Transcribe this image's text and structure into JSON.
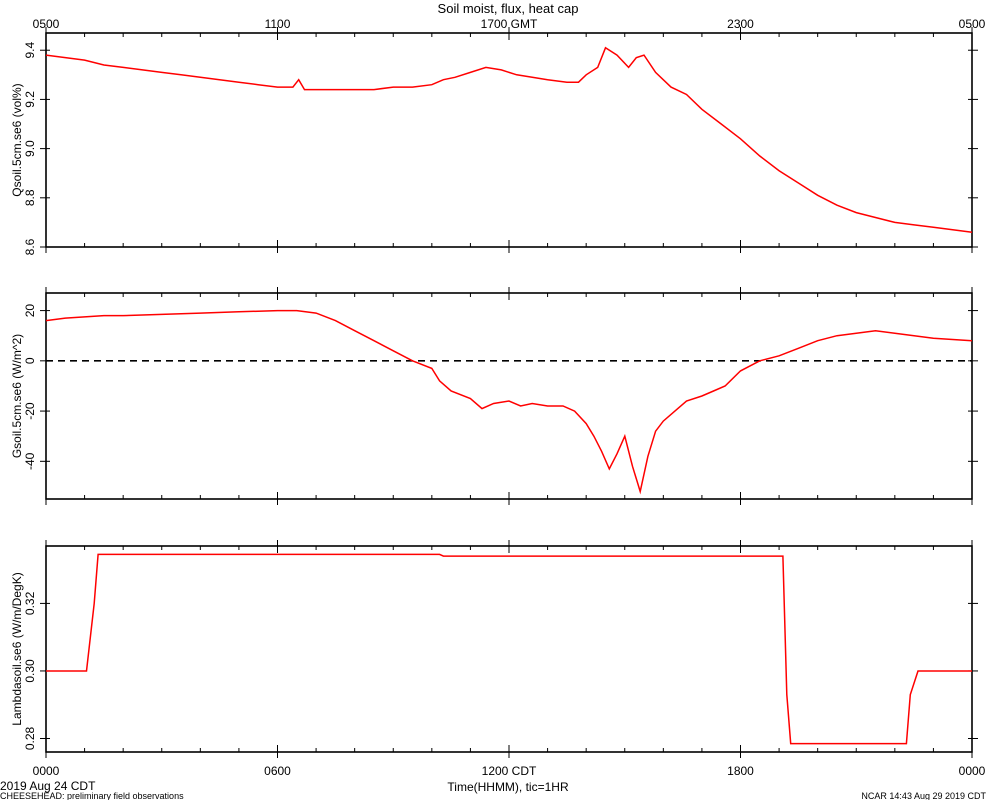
{
  "title": "Soil moist, flux, heat cap",
  "top_axis": {
    "ticks": [
      {
        "v": 0,
        "label": "0500"
      },
      {
        "v": 6,
        "label": "1100"
      },
      {
        "v": 12,
        "label": "1700 GMT"
      },
      {
        "v": 18,
        "label": "2300"
      },
      {
        "v": 24,
        "label": "0500"
      }
    ]
  },
  "bottom_axis": {
    "ticks": [
      {
        "v": 0,
        "label": "0000"
      },
      {
        "v": 6,
        "label": "0600"
      },
      {
        "v": 12,
        "label": "1200 CDT"
      },
      {
        "v": 18,
        "label": "1800"
      },
      {
        "v": 24,
        "label": "0000"
      }
    ],
    "xlabel": "Time(HHMM), tic=1HR",
    "date_label": "2019 Aug 24 CDT"
  },
  "footer": {
    "left": "CHEESEHEAD: preliminary field observations",
    "right": "NCAR 14:43 Aug 29 2019 CDT"
  },
  "colors": {
    "series": "#ff0000",
    "axes": "#000000",
    "zero_line": "#000000"
  },
  "chart_data": [
    {
      "type": "line",
      "ylabel": "Qsoil.5cm.se6 (vol%)",
      "ylim": [
        8.6,
        9.47
      ],
      "yticks": [
        8.6,
        8.8,
        9.0,
        9.2,
        9.4
      ],
      "ytick_labels": [
        "8.6",
        "8.8",
        "9.0",
        "9.2",
        "9.4"
      ],
      "xlim": [
        0,
        24
      ],
      "x": [
        0,
        0.5,
        1,
        1.5,
        2,
        2.5,
        3,
        3.5,
        4,
        4.5,
        5,
        5.5,
        6,
        6.4,
        6.55,
        6.7,
        7,
        7.5,
        8,
        8.5,
        9,
        9.5,
        10,
        10.3,
        10.6,
        11,
        11.4,
        11.8,
        12.2,
        12.6,
        13,
        13.5,
        13.8,
        14,
        14.3,
        14.5,
        14.8,
        15.1,
        15.3,
        15.5,
        15.8,
        16.2,
        16.6,
        17,
        17.5,
        18,
        18.5,
        19,
        19.5,
        20,
        20.5,
        21,
        21.5,
        22,
        22.5,
        23,
        23.5,
        24
      ],
      "y": [
        9.38,
        9.37,
        9.36,
        9.34,
        9.33,
        9.32,
        9.31,
        9.3,
        9.29,
        9.28,
        9.27,
        9.26,
        9.25,
        9.25,
        9.28,
        9.24,
        9.24,
        9.24,
        9.24,
        9.24,
        9.25,
        9.25,
        9.26,
        9.28,
        9.29,
        9.31,
        9.33,
        9.32,
        9.3,
        9.29,
        9.28,
        9.27,
        9.27,
        9.3,
        9.33,
        9.41,
        9.38,
        9.33,
        9.37,
        9.38,
        9.31,
        9.25,
        9.22,
        9.16,
        9.1,
        9.04,
        8.97,
        8.91,
        8.86,
        8.81,
        8.77,
        8.74,
        8.72,
        8.7,
        8.69,
        8.68,
        8.67,
        8.66
      ],
      "zero_line": false
    },
    {
      "type": "line",
      "ylabel": "Gsoil.5cm.se6 (W/m^2)",
      "ylim": [
        -55,
        27
      ],
      "yticks": [
        -40,
        -20,
        0,
        20
      ],
      "ytick_labels": [
        "-40",
        "-20",
        "0",
        "20"
      ],
      "xlim": [
        0,
        24
      ],
      "x": [
        0,
        0.5,
        1,
        1.5,
        2,
        3,
        4,
        5,
        6,
        6.5,
        7,
        7.5,
        8,
        8.5,
        9,
        9.5,
        10,
        10.2,
        10.5,
        11,
        11.3,
        11.6,
        12,
        12.3,
        12.6,
        13,
        13.4,
        13.7,
        14,
        14.2,
        14.4,
        14.6,
        14.8,
        15,
        15.2,
        15.4,
        15.6,
        15.8,
        16,
        16.3,
        16.6,
        17,
        17.3,
        17.6,
        18,
        18.5,
        19,
        19.5,
        20,
        20.5,
        21,
        21.5,
        22,
        22.5,
        23,
        23.5,
        24
      ],
      "y": [
        16,
        17,
        17.5,
        18,
        18,
        18.5,
        19,
        19.5,
        20,
        20,
        19,
        16,
        12,
        8,
        4,
        0,
        -3,
        -8,
        -12,
        -15,
        -19,
        -17,
        -16,
        -18,
        -17,
        -18,
        -18,
        -20,
        -25,
        -30,
        -36,
        -43,
        -37,
        -30,
        -42,
        -52,
        -38,
        -28,
        -24,
        -20,
        -16,
        -14,
        -12,
        -10,
        -4,
        0,
        2,
        5,
        8,
        10,
        11,
        12,
        11,
        10,
        9,
        8.5,
        8
      ],
      "zero_line": true
    },
    {
      "type": "line",
      "ylabel": "Lambdasoil.se6 (W/m/DegK)",
      "ylim": [
        0.276,
        0.337
      ],
      "yticks": [
        0.28,
        0.3,
        0.32
      ],
      "ytick_labels": [
        "0.28",
        "0.30",
        "0.32"
      ],
      "xlim": [
        0,
        24
      ],
      "x": [
        0,
        1.05,
        1.25,
        1.35,
        2,
        6,
        10,
        10.2,
        10.3,
        14,
        18,
        19.1,
        19.2,
        19.3,
        20,
        22,
        22.3,
        22.4,
        22.6,
        23,
        24
      ],
      "y": [
        0.3,
        0.3,
        0.32,
        0.3345,
        0.3345,
        0.3345,
        0.3345,
        0.3345,
        0.334,
        0.334,
        0.334,
        0.334,
        0.293,
        0.2785,
        0.2785,
        0.2785,
        0.2785,
        0.293,
        0.3,
        0.3,
        0.3
      ],
      "zero_line": false
    }
  ]
}
